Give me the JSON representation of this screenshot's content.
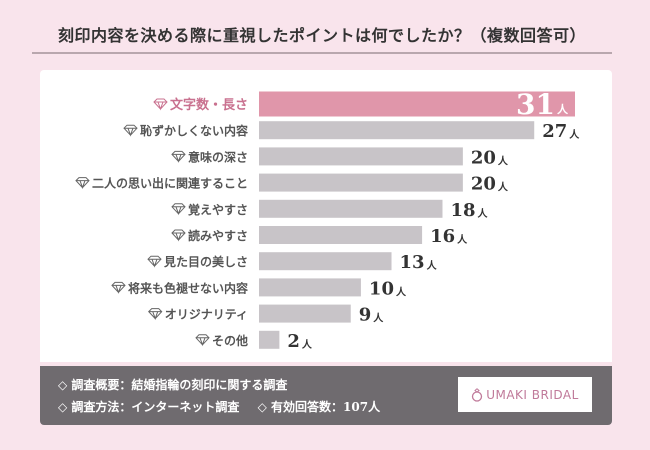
{
  "title": "刻印内容を決める際に重視したポイントは何でしたか？（複数回答可）",
  "chart_data": {
    "type": "bar",
    "orientation": "horizontal",
    "title": "刻印内容を決める際に重視したポイントは何でしたか？（複数回答可）",
    "categories": [
      "文字数・長さ",
      "恥ずかしくない内容",
      "意味の深さ",
      "二人の思い出に関連すること",
      "覚えやすさ",
      "読みやすさ",
      "見た目の美しさ",
      "将来も色褪せない内容",
      "オリジナリティ",
      "その他"
    ],
    "values": [
      31,
      27,
      20,
      20,
      18,
      16,
      13,
      10,
      9,
      2
    ],
    "unit": "人",
    "xlim": [
      0,
      31
    ],
    "grid": false,
    "highlight_index": 0,
    "colors": {
      "highlight": "#e096aa",
      "bar": "#c8c4c8",
      "highlight_label": "#c9718f",
      "label": "#555555"
    },
    "icon": "diamond-icon"
  },
  "footer": {
    "summary": "◇ 調査概要：結婚指輪の刻印に関する調査",
    "method": "◇ 調査方法：インターネット調査",
    "respondents": "◇ 有効回答数：107人",
    "logo_text": "UMAKI BRIDAL",
    "logo_icon": "ring-icon"
  }
}
